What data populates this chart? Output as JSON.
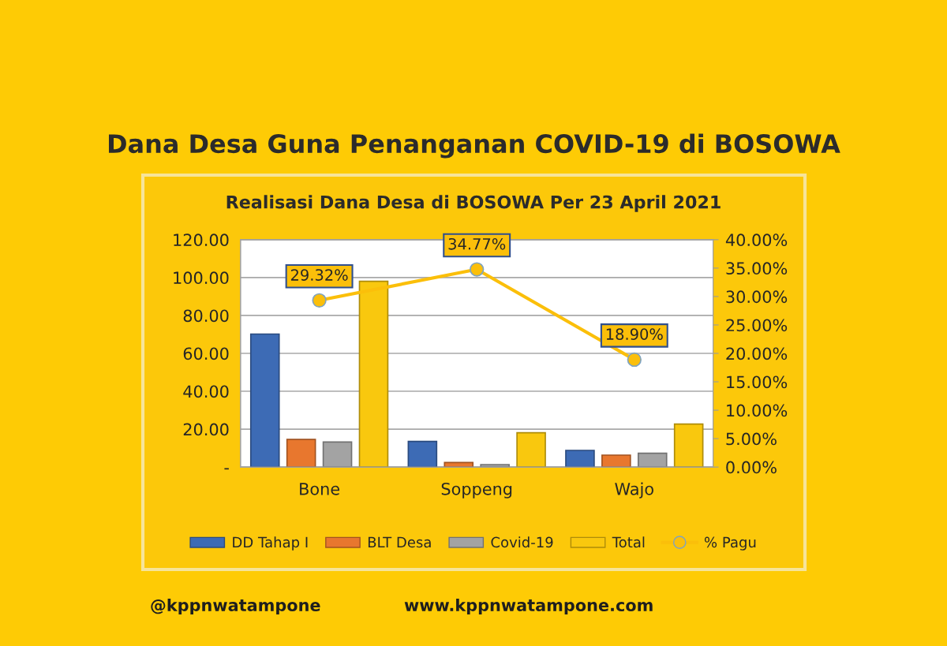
{
  "chart_data": {
    "type": "bar",
    "title": "Dana Desa Guna Penanganan COVID-19 di BOSOWA",
    "subtitle": "Realisasi Dana Desa di BOSOWA Per 23 April 2021",
    "categories": [
      "Bone",
      "Soppeng",
      "Wajo"
    ],
    "series": [
      {
        "name": "DD Tahap I",
        "color": "#3d6bb5",
        "values": [
          70.2,
          13.5,
          8.8
        ]
      },
      {
        "name": "BLT Desa",
        "color": "#e8772e",
        "values": [
          14.6,
          2.4,
          6.3
        ]
      },
      {
        "name": "Covid-19",
        "color": "#a3a3a3",
        "values": [
          13.2,
          1.3,
          7.3
        ]
      },
      {
        "name": "Total",
        "color": "#f9c80e",
        "values": [
          98.0,
          18.1,
          22.7
        ]
      },
      {
        "name": "% Pagu",
        "type": "line",
        "axis": "y2",
        "color": "#fbbf0a",
        "marker": "circle",
        "values": [
          29.32,
          34.77,
          18.9
        ],
        "value_labels": [
          "29.32%",
          "34.77%",
          "18.90%"
        ]
      }
    ],
    "ylim": [
      0,
      120
    ],
    "yticks": [
      {
        "value": 0,
        "label": "-"
      },
      {
        "value": 20,
        "label": "20.00"
      },
      {
        "value": 40,
        "label": "40.00"
      },
      {
        "value": 60,
        "label": "60.00"
      },
      {
        "value": 80,
        "label": "80.00"
      },
      {
        "value": 100,
        "label": "100.00"
      },
      {
        "value": 120,
        "label": "120.00"
      }
    ],
    "y2lim": [
      0,
      40
    ],
    "y2ticks": [
      {
        "value": 0,
        "label": "0.00%"
      },
      {
        "value": 5,
        "label": "5.00%"
      },
      {
        "value": 10,
        "label": "10.00%"
      },
      {
        "value": 15,
        "label": "15.00%"
      },
      {
        "value": 20,
        "label": "20.00%"
      },
      {
        "value": 25,
        "label": "25.00%"
      },
      {
        "value": 30,
        "label": "30.00%"
      },
      {
        "value": 35,
        "label": "35.00%"
      },
      {
        "value": 40,
        "label": "40.00%"
      }
    ],
    "grid": "y",
    "legend": "bottom",
    "annotations": [
      "@kppnwatampone",
      "www.kppnwatampone.com"
    ]
  }
}
